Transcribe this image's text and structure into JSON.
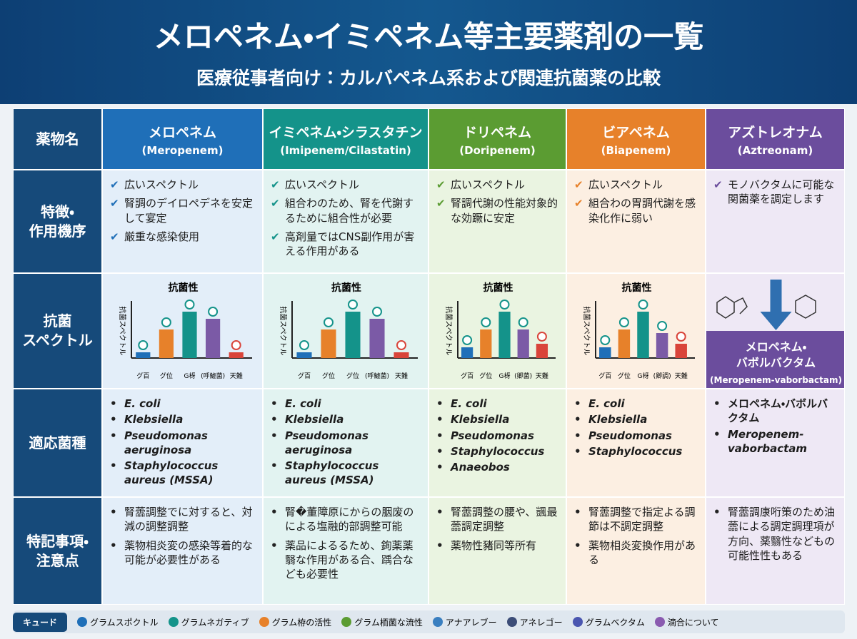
{
  "header": {
    "title": "メロペネム・イミペネム等主要薬剤の一覧",
    "subtitle": "医療従事者向け：カルバペネム系および関連抗菌薬の比較"
  },
  "table": {
    "row_headers": [
      "薬物名",
      "特徴・\n作用機序",
      "抗菌\nスペクトル",
      "適応菌種",
      "特記事項・\n注意点"
    ],
    "columns": [
      {
        "name": "メロペネム",
        "latin": "(Meropenem)",
        "color": "#1f6fb8",
        "tint": "#e3eef9",
        "features": [
          "広いスペクトル",
          "腎調のデイロペデネを安定して宴定",
          "厳重な感染使用"
        ],
        "spectrum": {
          "title": "抗菌性",
          "y_label": "抗菌スペクトル",
          "categories": [
            "グ百",
            "グ位",
            "G枒",
            "(呼鱋菌)",
            "天難"
          ],
          "values": [
            8,
            40,
            65,
            55,
            8
          ]
        },
        "species": [
          "E. coli",
          "Klebsiella",
          "Pseudomonas aeruginosa",
          "Staphylococcus aureus (MSSA)"
        ],
        "notes": [
          "腎蘦調整でに対すると、対減の調整調整",
          "薬物相炎変の感染等着的な可能が必要性がある"
        ]
      },
      {
        "name": "イミペネム・シラスタチン",
        "latin": "(Imipenem/Cilastatin)",
        "color": "#14938a",
        "tint": "#e2f3f1",
        "features": [
          "広いスペクトル",
          "組合わのため、腎を代謝するために組合性が必要",
          "高剤量ではCNS副作用が害える作用がある"
        ],
        "spectrum": {
          "title": "抗菌性",
          "y_label": "抗菌スペクトル",
          "categories": [
            "グ百",
            "グ位",
            "グ位",
            "(呼鱋菌)",
            "天難"
          ],
          "values": [
            8,
            40,
            65,
            55,
            8
          ]
        },
        "species": [
          "E. coli",
          "Klebsiella",
          "Pseudomonas aeruginosa",
          "Staphylococcus aureus (MSSA)"
        ],
        "notes": [
          "腎�董障原にからの胭废のによる塩融的部調整可能",
          "薬品によるるため、銁薬薬翳な作用がある合、踽合なども必要性"
        ]
      },
      {
        "name": "ドリペネム",
        "latin": "(Doripenem)",
        "color": "#5b9c32",
        "tint": "#eaf4e1",
        "features": [
          "広いスペクトル",
          "腎調代謝の性能対象的な効蹶に安定"
        ],
        "spectrum": {
          "title": "抗菌性",
          "y_label": "抗菌スペクトル",
          "categories": [
            "グ百",
            "グ位",
            "G枒",
            "(卿菌)",
            "天難"
          ],
          "values": [
            15,
            40,
            65,
            40,
            20
          ]
        },
        "species": [
          "E. coli",
          "Klebsiella",
          "Pseudomonas",
          "Staphylococcus",
          "Anaeobos"
        ],
        "notes": [
          "腎蘦調整の腰や、颽最蘦調定調整",
          "薬物性豬同等所有"
        ]
      },
      {
        "name": "ビアペネム",
        "latin": "(Biapenem)",
        "color": "#e7812a",
        "tint": "#fcefe2",
        "features": [
          "広いスペクトル",
          "組合わの胃調代謝を感染化作に弱い"
        ],
        "spectrum": {
          "title": "抗菌性",
          "y_label": "抗菌スペクトル",
          "categories": [
            "グ百",
            "グ位",
            "G枒",
            "(卿調)",
            "天難"
          ],
          "values": [
            15,
            40,
            65,
            35,
            20
          ]
        },
        "species": [
          "E. coli",
          "Klebsiella",
          "Pseudomonas",
          "Staphylococcus"
        ],
        "notes": [
          "腎蘦調整で指定よる調節は不調定調整",
          "薬物相炎変換作用がある"
        ]
      },
      {
        "name": "アズトレオナム",
        "latin": "(Aztreonam)",
        "color": "#6b4d9d",
        "tint": "#eee8f5",
        "features": [
          "モノバクタムに可能な関菌薬を調定します"
        ],
        "spectrum": {
          "combination": "メロペネム・\nバボルバクタム",
          "latin": "(Meropenem-vaborbactam)"
        },
        "species": [
          "メロペネム・バボルバクタム",
          "Meropenem-vaborbactam"
        ],
        "notes": [
          "腎蘦調康哘策のため油蘦による調定調理項が方向、薬翳性などもの可能性性もある"
        ]
      }
    ]
  },
  "legend": {
    "title": "キュード",
    "items": [
      {
        "label": "グラムスポクトル",
        "color": "#1f6fb8"
      },
      {
        "label": "グラムネガティブ",
        "color": "#14938a"
      },
      {
        "label": "グラム栫の活性",
        "color": "#e7812a"
      },
      {
        "label": "グラム栭菌な流性",
        "color": "#5b9c32"
      },
      {
        "label": "アナアレブー",
        "color": "#3a7fc0"
      },
      {
        "label": "アネレゴー",
        "color": "#3c4d78"
      },
      {
        "label": "グラムベクタム",
        "color": "#4a56b0"
      },
      {
        "label": "滴合について",
        "color": "#8a5bb0"
      }
    ]
  }
}
